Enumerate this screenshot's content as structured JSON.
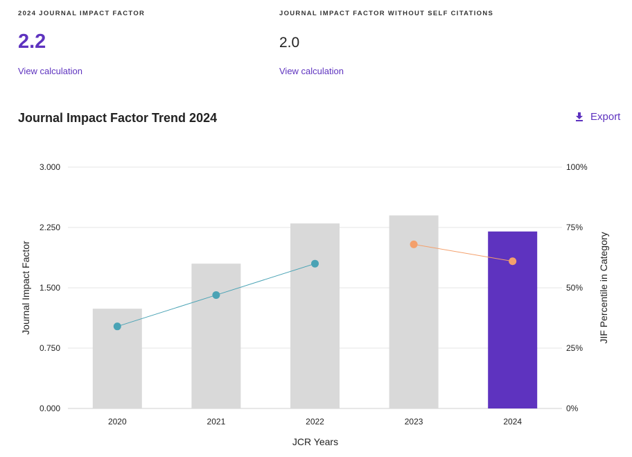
{
  "metrics": {
    "jif": {
      "label": "2024 JOURNAL IMPACT FACTOR",
      "value": "2.2",
      "link": "View calculation"
    },
    "jif_no_self": {
      "label": "JOURNAL IMPACT FACTOR WITHOUT SELF CITATIONS",
      "value": "2.0",
      "link": "View calculation"
    }
  },
  "chart_section": {
    "title": "Journal Impact Factor Trend 2024",
    "export_label": "Export",
    "export_icon": "download-icon"
  },
  "chart_data": {
    "type": "bar",
    "categories": [
      "2020",
      "2021",
      "2022",
      "2023",
      "2024"
    ],
    "series": [
      {
        "values": [
          1.24,
          1.8,
          2.3,
          2.4,
          2.2
        ],
        "type": "bar",
        "axis": "left"
      },
      {
        "values": [
          34,
          47,
          60,
          null,
          null
        ],
        "type": "line",
        "axis": "right"
      },
      {
        "values": [
          null,
          null,
          null,
          68,
          61
        ],
        "type": "line",
        "axis": "right"
      }
    ],
    "bar_colors": [
      "#d9d9d9",
      "#d9d9d9",
      "#d9d9d9",
      "#d9d9d9",
      "#5e33bf"
    ],
    "line_colors": [
      "#4aa3b5",
      "#f4a06c"
    ],
    "xlabel": "JCR Years",
    "ylabel": "Journal Impact Factor",
    "y2label": "JIF Percentile in Category",
    "ylim": [
      0,
      3
    ],
    "y2lim": [
      0,
      100
    ],
    "yticks": [
      "0.000",
      "0.750",
      "1.500",
      "2.250",
      "3.000"
    ],
    "y2ticks": [
      "0%",
      "25%",
      "50%",
      "75%",
      "100%"
    ],
    "grid": true,
    "legend": "none"
  }
}
